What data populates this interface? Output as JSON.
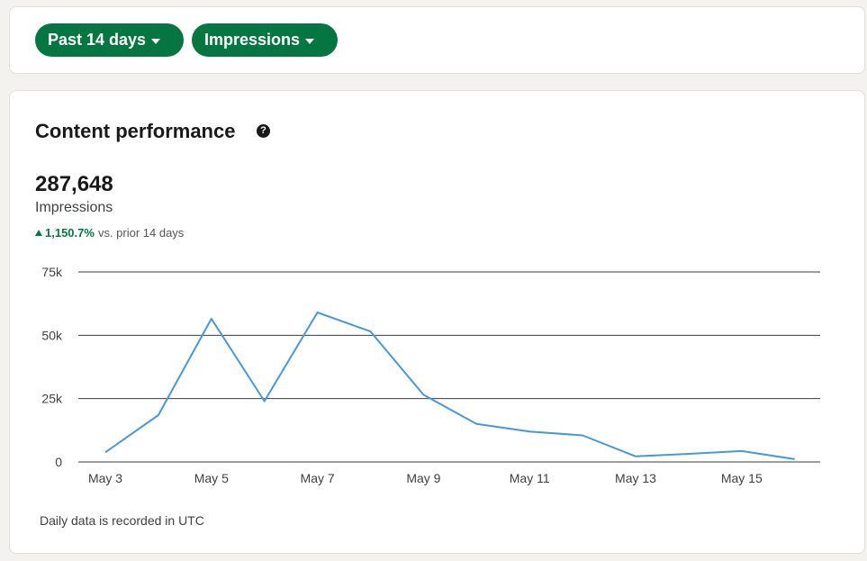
{
  "filters": {
    "date_range": "Past 14 days",
    "metric": "Impressions"
  },
  "performance": {
    "title": "Content performance",
    "total_value": "287,648",
    "total_label": "Impressions",
    "change_percent": "1,150.7%",
    "change_comparison": "vs. prior 14 days",
    "footnote": "Daily data is recorded in UTC"
  },
  "colors": {
    "accent": "#057642",
    "line": "#4a97d8",
    "gridline": "#3c3c3c"
  },
  "icons": {
    "help": "question-circle-icon",
    "dropdown": "caret-down-icon",
    "trend": "up-triangle-icon"
  },
  "chart_data": {
    "type": "line",
    "x": [
      "May 3",
      "May 4",
      "May 5",
      "May 6",
      "May 7",
      "May 8",
      "May 9",
      "May 10",
      "May 11",
      "May 12",
      "May 13",
      "May 14",
      "May 15",
      "May 16"
    ],
    "x_tick_labels": [
      "May 3",
      "May 5",
      "May 7",
      "May 9",
      "May 11",
      "May 13",
      "May 15"
    ],
    "y_tick_labels": [
      "0",
      "25k",
      "50k",
      "75k"
    ],
    "y_ticks": [
      0,
      25000,
      50000,
      75000
    ],
    "ylim": [
      0,
      75000
    ],
    "series": [
      {
        "values": [
          3800,
          18500,
          56500,
          24000,
          59000,
          51500,
          26500,
          15000,
          12000,
          10500,
          2200,
          3200,
          4300,
          1100
        ]
      }
    ],
    "title": "",
    "xlabel": "",
    "ylabel": "",
    "grid": true,
    "legend": "none"
  }
}
